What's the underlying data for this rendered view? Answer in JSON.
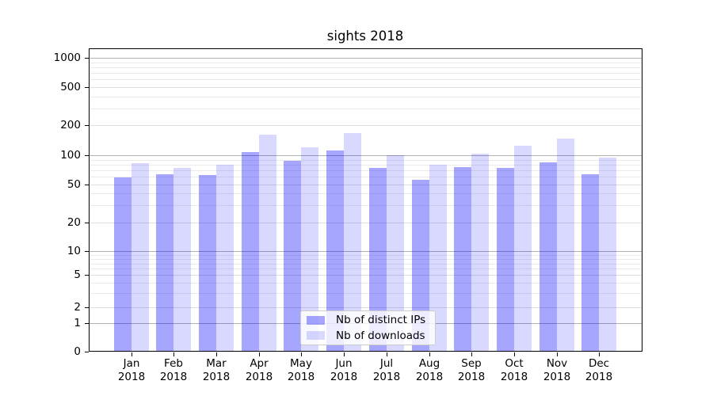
{
  "figure": {
    "background": "#ffffff"
  },
  "chart_data": {
    "type": "bar",
    "title": "sights 2018",
    "categories": [
      "Jan",
      "Feb",
      "Mar",
      "Apr",
      "May",
      "Jun",
      "Jul",
      "Aug",
      "Sep",
      "Oct",
      "Nov",
      "Dec"
    ],
    "category_sublabel": "2018",
    "series": [
      {
        "name": "Nb of distinct IPs",
        "color": "rgba(0,0,255,0.35)",
        "color_hex_on_white": "#a6a6ff",
        "values": [
          59,
          64,
          62,
          107,
          88,
          112,
          74,
          56,
          75,
          74,
          84,
          64
        ]
      },
      {
        "name": "Nb of downloads",
        "color": "rgba(0,0,255,0.15)",
        "color_hex_on_white": "#d9d9ff",
        "values": [
          83,
          74,
          80,
          162,
          120,
          166,
          100,
          79,
          104,
          125,
          146,
          94
        ]
      }
    ],
    "xlabel": "",
    "ylabel": "",
    "yscale": "symlog",
    "ylim": [
      0,
      1270
    ],
    "yticks": [
      0,
      1,
      2,
      5,
      10,
      20,
      50,
      100,
      200,
      500,
      1000
    ],
    "yticks_minor": [
      3,
      4,
      6,
      7,
      8,
      9,
      30,
      40,
      60,
      70,
      80,
      90,
      300,
      400,
      600,
      700,
      800,
      900
    ],
    "grid": true,
    "legend": {
      "position": "inside lower-center",
      "items": [
        "Nb of distinct IPs",
        "Nb of downloads"
      ]
    },
    "colors": {
      "gridline_decade": "#b0b0b0",
      "gridline_minor": "#ebebeb",
      "spine": "#000000",
      "legend_border": "#cccccc"
    }
  }
}
